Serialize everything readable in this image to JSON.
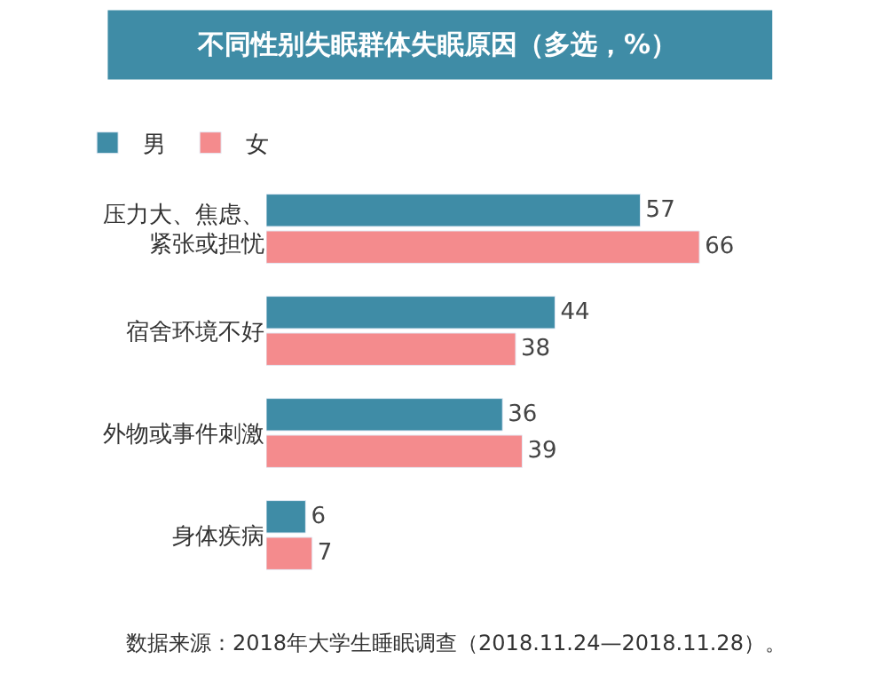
{
  "chart_data": {
    "type": "bar",
    "orientation": "horizontal",
    "title": "不同性别失眠群体失眠原因（多选，%）",
    "categories": [
      "压力大、焦虑、紧张或担忧",
      "宿舍环境不好",
      "外物或事件刺激",
      "身体疾病"
    ],
    "series": [
      {
        "name": "男",
        "color": "#3f8ca6",
        "values": [
          57,
          44,
          36,
          6
        ]
      },
      {
        "name": "女",
        "color": "#f48b8d",
        "values": [
          66,
          38,
          39,
          7
        ]
      }
    ],
    "data_labels": true,
    "legend": "top left",
    "annotations": [
      "数据来源：2018年大学生睡眠调查（2018.11.24—2018.11.28）。"
    ]
  }
}
